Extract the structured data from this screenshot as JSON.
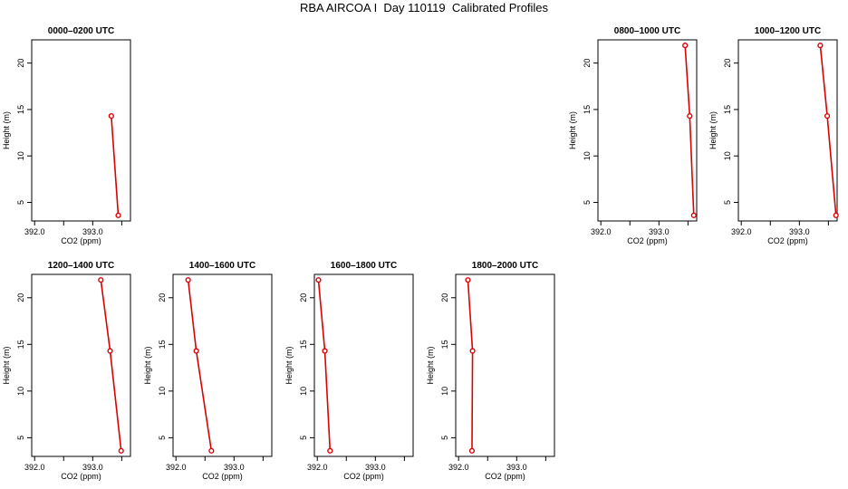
{
  "page": {
    "title": "RBA AIRCOA I  Day 110119  Calibrated Profiles"
  },
  "colors": {
    "series": "#dd0000",
    "axes": "#000000",
    "background": "#ffffff"
  },
  "chart_data": [
    {
      "type": "line",
      "title": "0000–0200 UTC",
      "xlabel": "CO2 (ppm)",
      "ylabel": "Height (m)",
      "xlim": [
        391.95,
        393.65
      ],
      "ylim": [
        3.0,
        22.5
      ],
      "xticks": [
        392.0,
        392.5,
        393.0,
        393.5
      ],
      "xtick_labels": [
        "392.0",
        "",
        "393.0",
        ""
      ],
      "yticks": [
        5,
        10,
        15,
        20
      ],
      "ytick_labels": [
        "5",
        "10",
        "15",
        "20"
      ],
      "grid": false,
      "points": [
        {
          "x": 393.32,
          "y": 14.3
        },
        {
          "x": 393.44,
          "y": 3.6
        }
      ]
    },
    {
      "type": "line",
      "title": "0800–1000 UTC",
      "xlabel": "CO2 (ppm)",
      "ylabel": "Height (m)",
      "xlim": [
        391.95,
        393.65
      ],
      "ylim": [
        3.0,
        22.5
      ],
      "xticks": [
        392.0,
        392.5,
        393.0,
        393.5
      ],
      "xtick_labels": [
        "392.0",
        "",
        "393.0",
        ""
      ],
      "yticks": [
        5,
        10,
        15,
        20
      ],
      "ytick_labels": [
        "5",
        "10",
        "15",
        "20"
      ],
      "grid": false,
      "points": [
        {
          "x": 393.45,
          "y": 21.9
        },
        {
          "x": 393.53,
          "y": 14.3
        },
        {
          "x": 393.6,
          "y": 3.6
        }
      ]
    },
    {
      "type": "line",
      "title": "1000–1200 UTC",
      "xlabel": "CO2 (ppm)",
      "ylabel": "Height (m)",
      "xlim": [
        391.95,
        393.65
      ],
      "ylim": [
        3.0,
        22.5
      ],
      "xticks": [
        392.0,
        392.5,
        393.0,
        393.5
      ],
      "xtick_labels": [
        "392.0",
        "",
        "393.0",
        ""
      ],
      "yticks": [
        5,
        10,
        15,
        20
      ],
      "ytick_labels": [
        "5",
        "10",
        "15",
        "20"
      ],
      "grid": false,
      "points": [
        {
          "x": 393.36,
          "y": 21.9
        },
        {
          "x": 393.48,
          "y": 14.3
        },
        {
          "x": 393.63,
          "y": 3.6
        }
      ]
    },
    {
      "type": "line",
      "title": "1200–1400 UTC",
      "xlabel": "CO2 (ppm)",
      "ylabel": "Height (m)",
      "xlim": [
        391.95,
        393.65
      ],
      "ylim": [
        3.0,
        22.5
      ],
      "xticks": [
        392.0,
        392.5,
        393.0,
        393.5
      ],
      "xtick_labels": [
        "392.0",
        "",
        "393.0",
        ""
      ],
      "yticks": [
        5,
        10,
        15,
        20
      ],
      "ytick_labels": [
        "5",
        "10",
        "15",
        "20"
      ],
      "grid": false,
      "points": [
        {
          "x": 393.14,
          "y": 21.9
        },
        {
          "x": 393.3,
          "y": 14.3
        },
        {
          "x": 393.49,
          "y": 3.6
        }
      ]
    },
    {
      "type": "line",
      "title": "1400–1600 UTC",
      "xlabel": "CO2 (ppm)",
      "ylabel": "Height (m)",
      "xlim": [
        391.95,
        393.65
      ],
      "ylim": [
        3.0,
        22.5
      ],
      "xticks": [
        392.0,
        392.5,
        393.0,
        393.5
      ],
      "xtick_labels": [
        "392.0",
        "",
        "393.0",
        ""
      ],
      "yticks": [
        5,
        10,
        15,
        20
      ],
      "ytick_labels": [
        "5",
        "10",
        "15",
        "20"
      ],
      "grid": false,
      "points": [
        {
          "x": 392.21,
          "y": 21.9
        },
        {
          "x": 392.35,
          "y": 14.3
        },
        {
          "x": 392.61,
          "y": 3.6
        }
      ]
    },
    {
      "type": "line",
      "title": "1600–1800 UTC",
      "xlabel": "CO2 (ppm)",
      "ylabel": "Height (m)",
      "xlim": [
        391.95,
        393.65
      ],
      "ylim": [
        3.0,
        22.5
      ],
      "xticks": [
        392.0,
        392.5,
        393.0,
        393.5
      ],
      "xtick_labels": [
        "392.0",
        "",
        "393.0",
        ""
      ],
      "yticks": [
        5,
        10,
        15,
        20
      ],
      "ytick_labels": [
        "5",
        "10",
        "15",
        "20"
      ],
      "grid": false,
      "points": [
        {
          "x": 392.02,
          "y": 21.9
        },
        {
          "x": 392.13,
          "y": 14.3
        },
        {
          "x": 392.22,
          "y": 3.6
        }
      ]
    },
    {
      "type": "line",
      "title": "1800–2000 UTC",
      "xlabel": "CO2 (ppm)",
      "ylabel": "Height (m)",
      "xlim": [
        391.95,
        393.65
      ],
      "ylim": [
        3.0,
        22.5
      ],
      "xticks": [
        392.0,
        392.5,
        393.0,
        393.5
      ],
      "xtick_labels": [
        "392.0",
        "",
        "393.0",
        ""
      ],
      "yticks": [
        5,
        10,
        15,
        20
      ],
      "ytick_labels": [
        "5",
        "10",
        "15",
        "20"
      ],
      "grid": false,
      "points": [
        {
          "x": 392.16,
          "y": 21.9
        },
        {
          "x": 392.24,
          "y": 14.3
        },
        {
          "x": 392.23,
          "y": 3.6
        }
      ]
    }
  ]
}
